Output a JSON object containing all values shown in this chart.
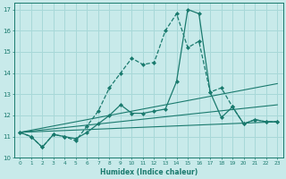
{
  "xlabel": "Humidex (Indice chaleur)",
  "bg_color": "#c8eaea",
  "grid_color": "#a8d8d8",
  "line_color": "#1a7a6e",
  "xlim": [
    -0.5,
    23.5
  ],
  "ylim": [
    10,
    17.3
  ],
  "yticks": [
    10,
    11,
    12,
    13,
    14,
    15,
    16,
    17
  ],
  "xticks": [
    0,
    1,
    2,
    3,
    4,
    5,
    6,
    7,
    8,
    9,
    10,
    11,
    12,
    13,
    14,
    15,
    16,
    17,
    18,
    19,
    20,
    21,
    22,
    23
  ],
  "series": [
    {
      "x": [
        0,
        1,
        2,
        3,
        4,
        5,
        6,
        7,
        8,
        9,
        10,
        11,
        12,
        13,
        14,
        15,
        16,
        17,
        18,
        19,
        20,
        21,
        22,
        23
      ],
      "y": [
        11.2,
        11.0,
        10.5,
        11.1,
        11.0,
        10.8,
        11.5,
        12.2,
        13.3,
        14.0,
        14.7,
        14.4,
        14.5,
        16.0,
        16.8,
        15.2,
        15.5,
        13.1,
        13.3,
        12.4,
        11.6,
        11.8,
        11.7,
        11.7
      ],
      "marker": "D",
      "linestyle": "--",
      "lw": 0.9
    },
    {
      "x": [
        0,
        1,
        2,
        3,
        4,
        5,
        6,
        7,
        8,
        9,
        10,
        11,
        12,
        13,
        14,
        15,
        16,
        17,
        18,
        19,
        20,
        21,
        22,
        23
      ],
      "y": [
        11.2,
        11.0,
        10.5,
        11.1,
        11.0,
        10.9,
        11.2,
        11.6,
        12.0,
        12.5,
        12.1,
        12.1,
        12.2,
        12.3,
        13.6,
        17.0,
        16.8,
        13.1,
        11.9,
        12.4,
        11.6,
        11.8,
        11.7,
        11.7
      ],
      "marker": "D",
      "linestyle": "-",
      "lw": 0.9
    },
    {
      "x": [
        0,
        23
      ],
      "y": [
        11.2,
        13.5
      ],
      "marker": null,
      "linestyle": "-",
      "lw": 0.8
    },
    {
      "x": [
        0,
        23
      ],
      "y": [
        11.2,
        12.5
      ],
      "marker": null,
      "linestyle": "-",
      "lw": 0.8
    },
    {
      "x": [
        0,
        23
      ],
      "y": [
        11.2,
        11.7
      ],
      "marker": null,
      "linestyle": "-",
      "lw": 0.8
    }
  ]
}
